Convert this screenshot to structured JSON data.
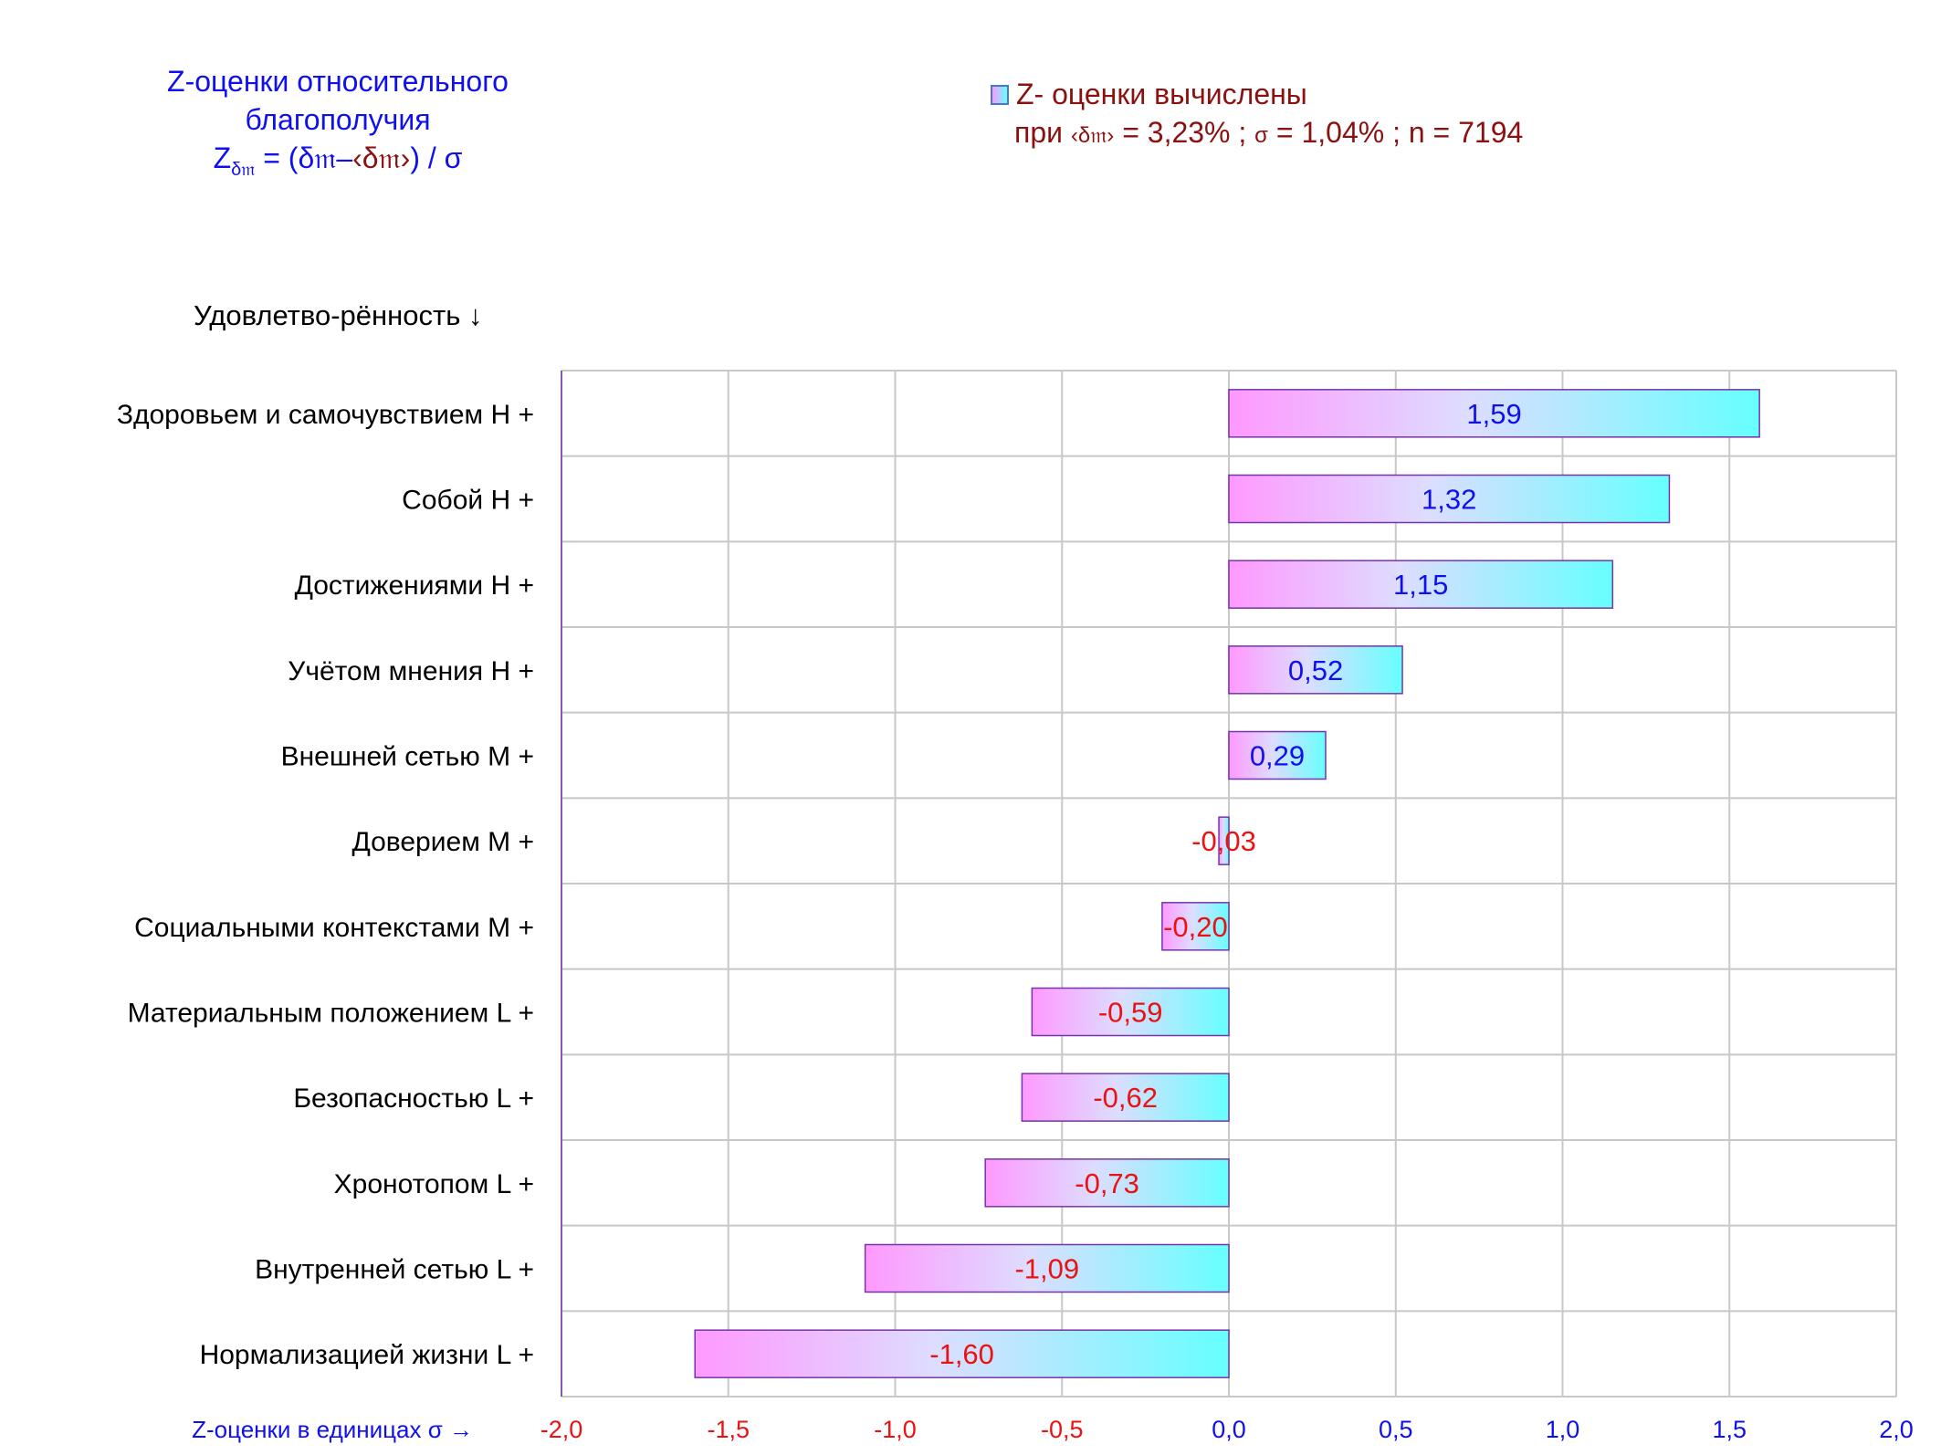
{
  "title": {
    "line1": "Z-оценки  относительного",
    "line2": "благополучия",
    "formula_z": "Z",
    "formula_sub": "δ𝔪",
    "formula_rest": " = (δ𝔪–",
    "formula_mean": "‹δ𝔪›",
    "formula_end": ")  / σ"
  },
  "legend": {
    "label": "Z- оценки вычислены",
    "line2_prefix": "при ",
    "line2_mean": "‹δ𝔪›",
    "line2_rest": " = 3,23% ; ",
    "line2_sigma": "σ",
    "line2_end": " = 1,04% ; n = 7194"
  },
  "category_header": "Удовлетво-рённость ↓",
  "colors": {
    "positive_label": "#1010ee",
    "negative_label": "#ee1111",
    "bar_left": "#ff99ff",
    "bar_right": "#66ffff",
    "bar_border": "#7733aa",
    "grid": "#c8c8c8",
    "axis": "#8855aa"
  },
  "chart_data": {
    "type": "bar",
    "orientation": "horizontal",
    "xlabel": "Z-оценки в единицах σ →",
    "xlim": [
      -2.0,
      2.0
    ],
    "xticks": [
      -2.0,
      -1.5,
      -1.0,
      -0.5,
      0.0,
      0.5,
      1.0,
      1.5,
      2.0
    ],
    "xtick_labels": [
      "-2,0",
      "-1,5",
      "-1,0",
      "-0,5",
      "0,0",
      "0,5",
      "1,0",
      "1,5",
      "2,0"
    ],
    "grid": true,
    "categories": [
      "Здоровьем и самочувствием  H +",
      "Собой  H +",
      "Достижениями  H +",
      "Учётом мнения  H +",
      "Внешней сетью  M +",
      "Доверием  M +",
      "Социальными контекстами  M +",
      "Материальным положением  L +",
      "Безопасностью  L +",
      "Хронотопом  L +",
      "Внутренней сетью  L +",
      "Нормализацией жизни  L +"
    ],
    "values": [
      1.59,
      1.32,
      1.15,
      0.52,
      0.29,
      -0.03,
      -0.2,
      -0.59,
      -0.62,
      -0.73,
      -1.09,
      -1.6
    ],
    "value_labels": [
      "1,59",
      "1,32",
      "1,15",
      "0,52",
      "0,29",
      "-0,03",
      "-0,20",
      "-0,59",
      "-0,62",
      "-0,73",
      "-1,09",
      "-1,60"
    ]
  }
}
